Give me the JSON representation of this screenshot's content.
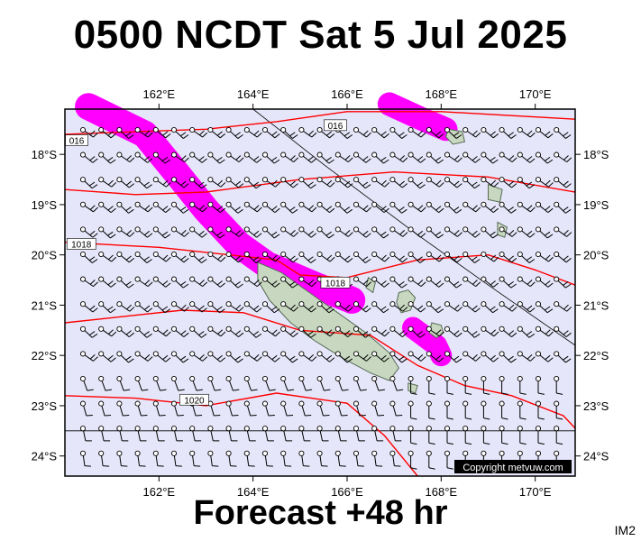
{
  "title": "0500 NCDT Sat 5 Jul 2025",
  "subtitle": "Forecast +48 hr",
  "corner_code": "IM2",
  "copyright": "Copyright metvuw.com",
  "map": {
    "lon_labels": [
      "162°E",
      "164°E",
      "166°E",
      "168°E",
      "170°E"
    ],
    "lon_values": [
      162,
      164,
      166,
      168,
      170
    ],
    "lat_labels": [
      "18°S",
      "19°S",
      "20°S",
      "21°S",
      "22°S",
      "23°S",
      "24°S"
    ],
    "lat_values": [
      -18,
      -19,
      -20,
      -21,
      -22,
      -23,
      -24
    ],
    "lon_range": [
      160.0,
      170.85
    ],
    "lat_range": [
      -24.4,
      -17.1
    ],
    "isobar_labels": [
      {
        "text": "016",
        "lon": 160.25,
        "lat": -17.72
      },
      {
        "text": "016",
        "lon": 165.75,
        "lat": -17.42
      },
      {
        "text": "1018",
        "lon": 160.35,
        "lat": -19.78
      },
      {
        "text": "1018",
        "lon": 165.75,
        "lat": -20.55
      },
      {
        "text": "1020",
        "lon": 162.75,
        "lat": -22.88
      }
    ],
    "colors": {
      "ocean": "#e6e6fa",
      "land": "#c8d8c0",
      "isobar": "#ff0000",
      "rain": "#ff00ff",
      "barb": "#000000"
    }
  }
}
